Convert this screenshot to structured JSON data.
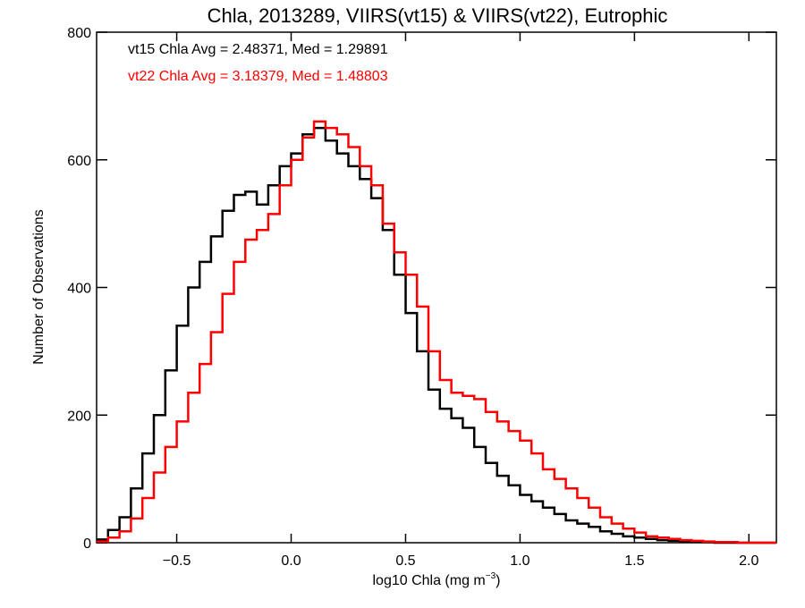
{
  "chart_data": {
    "type": "histogram",
    "title": "Chla, 2013289, VIIRS(vt15) & VIIRS(vt22), Eutrophic",
    "xlabel": "log10 Chla (mg m",
    "xlabel_superscript": "−3",
    "xlabel_close": ")",
    "ylabel": "Number of Observations",
    "xlim": [
      -0.85,
      2.12
    ],
    "ylim": [
      0,
      800
    ],
    "xticks": [
      -0.5,
      0.0,
      0.5,
      1.0,
      1.5,
      2.0
    ],
    "xtick_labels": [
      "−0.5",
      "0.0",
      "0.5",
      "1.0",
      "1.5",
      "2.0"
    ],
    "yticks": [
      0,
      200,
      400,
      600,
      800
    ],
    "ytick_labels": [
      "0",
      "200",
      "400",
      "600",
      "800"
    ],
    "annotations": [
      {
        "text": "vt15 Chla Avg = 2.48371, Med = 1.29891",
        "color": "#000000"
      },
      {
        "text": "vt22 Chla Avg = 3.18379, Med = 1.48803",
        "color": "#ff0000"
      }
    ],
    "series": [
      {
        "color": "#000000",
        "x": [
          -0.85,
          -0.8,
          -0.75,
          -0.7,
          -0.65,
          -0.6,
          -0.55,
          -0.5,
          -0.45,
          -0.4,
          -0.35,
          -0.3,
          -0.25,
          -0.2,
          -0.15,
          -0.1,
          -0.05,
          0.0,
          0.05,
          0.1,
          0.15,
          0.2,
          0.25,
          0.3,
          0.35,
          0.4,
          0.45,
          0.5,
          0.55,
          0.6,
          0.65,
          0.7,
          0.75,
          0.8,
          0.85,
          0.9,
          0.95,
          1.0,
          1.05,
          1.1,
          1.15,
          1.2,
          1.25,
          1.3,
          1.35,
          1.4,
          1.45,
          1.5,
          1.55,
          1.6,
          1.65,
          1.7,
          1.75,
          1.8,
          1.85,
          1.9,
          1.95,
          2.0,
          2.05,
          2.1
        ],
        "y": [
          5,
          20,
          40,
          85,
          140,
          200,
          270,
          340,
          400,
          440,
          480,
          520,
          545,
          550,
          530,
          560,
          590,
          610,
          640,
          650,
          630,
          610,
          590,
          570,
          540,
          490,
          420,
          360,
          300,
          240,
          210,
          195,
          180,
          150,
          125,
          105,
          90,
          75,
          65,
          55,
          45,
          35,
          30,
          25,
          18,
          14,
          10,
          8,
          6,
          4,
          3,
          2,
          1,
          1,
          0,
          0,
          0,
          0,
          0,
          0
        ]
      },
      {
        "color": "#ff0000",
        "x": [
          -0.85,
          -0.8,
          -0.75,
          -0.7,
          -0.65,
          -0.6,
          -0.55,
          -0.5,
          -0.45,
          -0.4,
          -0.35,
          -0.3,
          -0.25,
          -0.2,
          -0.15,
          -0.1,
          -0.05,
          0.0,
          0.05,
          0.1,
          0.15,
          0.2,
          0.25,
          0.3,
          0.35,
          0.4,
          0.45,
          0.5,
          0.55,
          0.6,
          0.65,
          0.7,
          0.75,
          0.8,
          0.85,
          0.9,
          0.95,
          1.0,
          1.05,
          1.1,
          1.15,
          1.2,
          1.25,
          1.3,
          1.35,
          1.4,
          1.45,
          1.5,
          1.55,
          1.6,
          1.65,
          1.7,
          1.75,
          1.8,
          1.85,
          1.9,
          1.95,
          2.0,
          2.05,
          2.1
        ],
        "y": [
          2,
          8,
          18,
          38,
          70,
          110,
          150,
          190,
          235,
          280,
          330,
          390,
          440,
          475,
          490,
          515,
          560,
          600,
          635,
          660,
          650,
          640,
          620,
          590,
          560,
          500,
          455,
          420,
          370,
          300,
          255,
          235,
          230,
          225,
          205,
          190,
          175,
          160,
          140,
          115,
          100,
          85,
          70,
          55,
          40,
          30,
          22,
          16,
          10,
          8,
          6,
          4,
          3,
          2,
          1,
          1,
          0,
          0,
          0,
          0
        ]
      }
    ]
  }
}
